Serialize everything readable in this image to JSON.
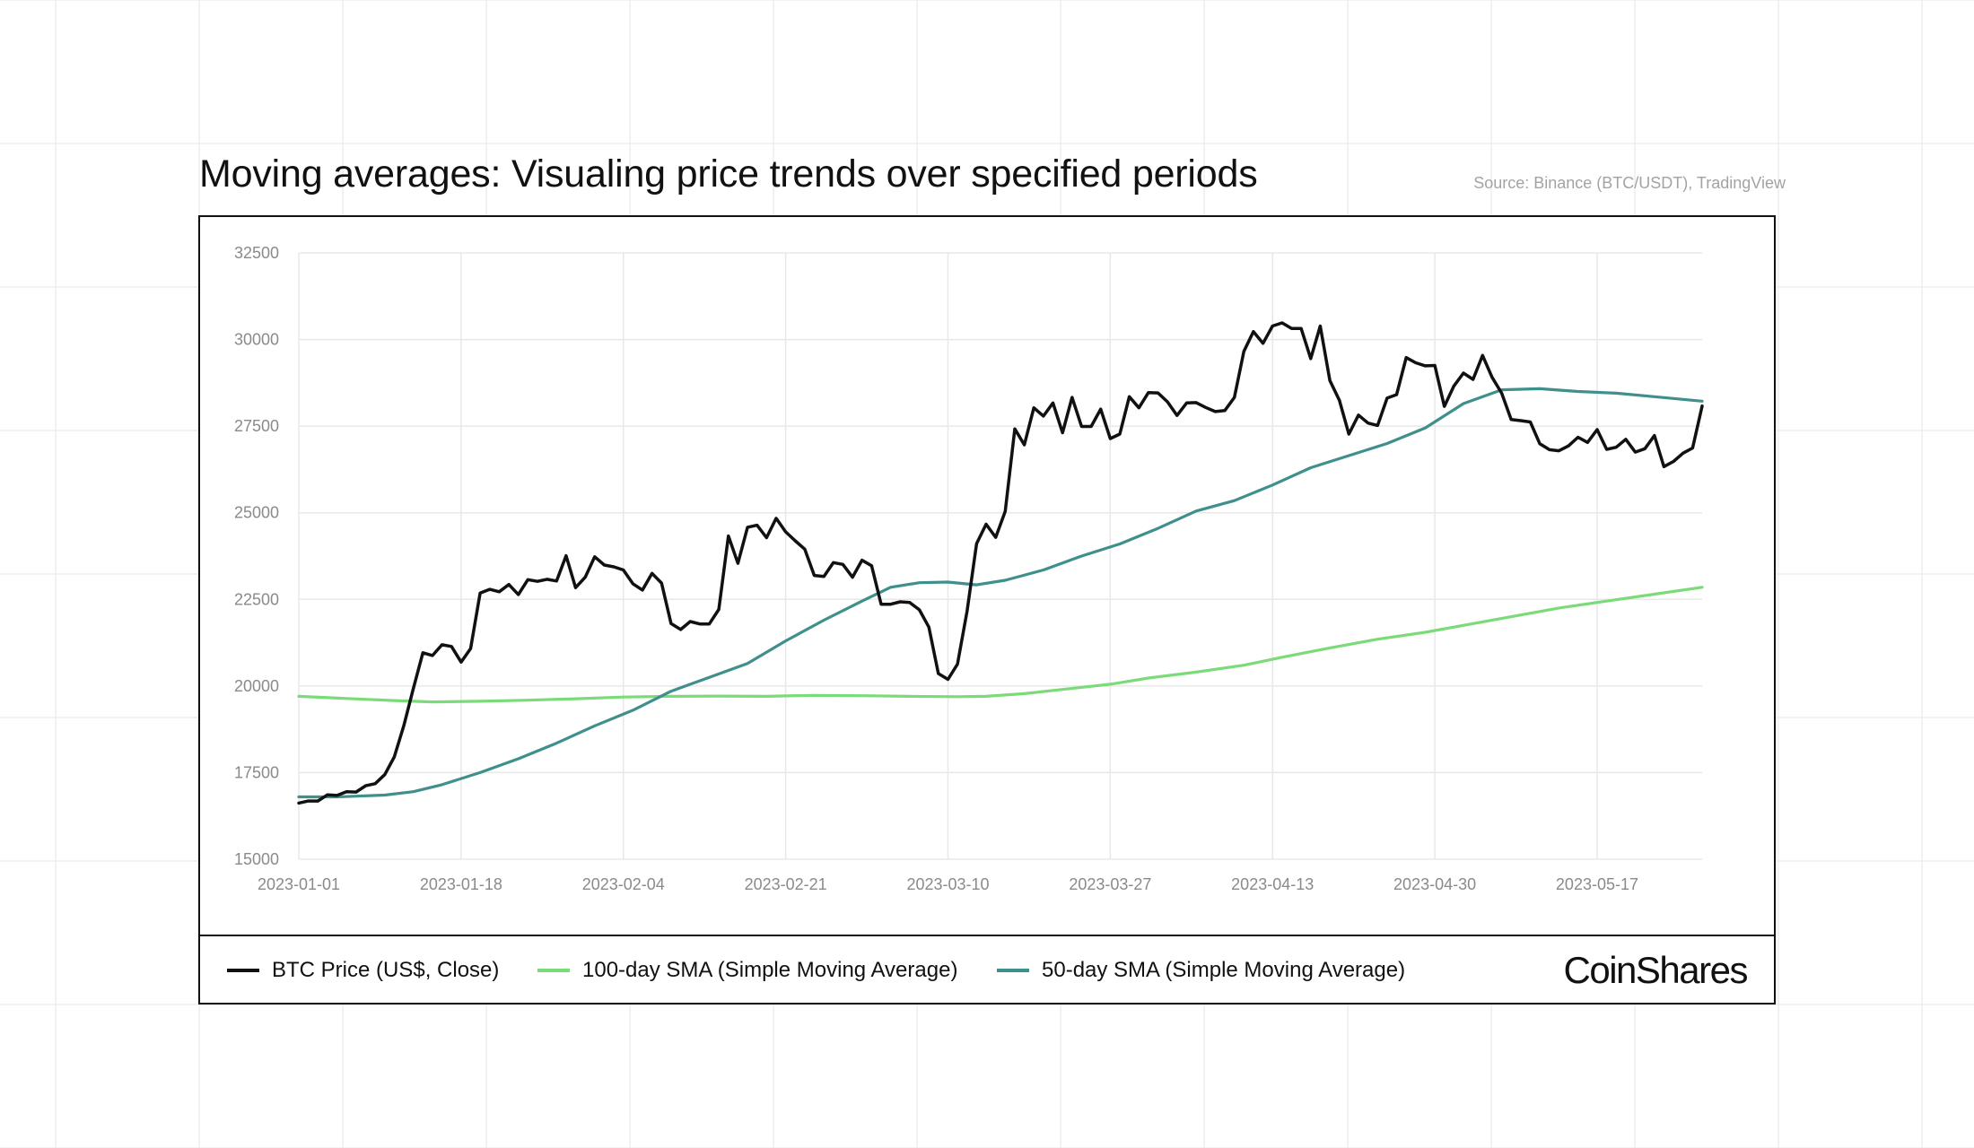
{
  "title": "Moving averages: Visualing price trends over specified periods",
  "source": "Source: Binance (BTC/USDT), TradingView",
  "brand": "CoinShares",
  "colors": {
    "btc": "#111111",
    "sma100": "#7adb78",
    "sma50": "#3f8f8c",
    "grid": "#e8e8e8",
    "tick_label": "#8a8a8a"
  },
  "chart_data": {
    "type": "line",
    "x_start": "2023-01-01",
    "x_end": "2023-05-28",
    "x_ticks": [
      "2023-01-01",
      "2023-01-18",
      "2023-02-04",
      "2023-02-21",
      "2023-03-10",
      "2023-03-27",
      "2023-04-13",
      "2023-04-30",
      "2023-05-17"
    ],
    "y_ticks": [
      15000,
      17500,
      20000,
      22500,
      25000,
      27500,
      30000,
      32500
    ],
    "ylim": [
      15000,
      32500
    ],
    "grid": true,
    "legend_position": "bottom",
    "series": [
      {
        "name": "BTC Price (US$, Close)",
        "color": "#111111",
        "points": [
          [
            "2023-01-01",
            16620
          ],
          [
            "2023-01-02",
            16680
          ],
          [
            "2023-01-03",
            16680
          ],
          [
            "2023-01-04",
            16860
          ],
          [
            "2023-01-05",
            16840
          ],
          [
            "2023-01-06",
            16950
          ],
          [
            "2023-01-07",
            16940
          ],
          [
            "2023-01-08",
            17120
          ],
          [
            "2023-01-09",
            17180
          ],
          [
            "2023-01-10",
            17440
          ],
          [
            "2023-01-11",
            17950
          ],
          [
            "2023-01-12",
            18850
          ],
          [
            "2023-01-13",
            19930
          ],
          [
            "2023-01-14",
            20960
          ],
          [
            "2023-01-15",
            20880
          ],
          [
            "2023-01-16",
            21190
          ],
          [
            "2023-01-17",
            21140
          ],
          [
            "2023-01-18",
            20690
          ],
          [
            "2023-01-19",
            21080
          ],
          [
            "2023-01-20",
            22680
          ],
          [
            "2023-01-21",
            22790
          ],
          [
            "2023-01-22",
            22720
          ],
          [
            "2023-01-23",
            22930
          ],
          [
            "2023-01-24",
            22640
          ],
          [
            "2023-01-25",
            23070
          ],
          [
            "2023-01-26",
            23020
          ],
          [
            "2023-01-27",
            23080
          ],
          [
            "2023-01-28",
            23030
          ],
          [
            "2023-01-29",
            23760
          ],
          [
            "2023-01-30",
            22840
          ],
          [
            "2023-01-31",
            23140
          ],
          [
            "2023-02-01",
            23730
          ],
          [
            "2023-02-02",
            23490
          ],
          [
            "2023-02-03",
            23440
          ],
          [
            "2023-02-04",
            23350
          ],
          [
            "2023-02-05",
            22950
          ],
          [
            "2023-02-06",
            22770
          ],
          [
            "2023-02-07",
            23250
          ],
          [
            "2023-02-08",
            22970
          ],
          [
            "2023-02-09",
            21800
          ],
          [
            "2023-02-10",
            21630
          ],
          [
            "2023-02-11",
            21860
          ],
          [
            "2023-02-12",
            21790
          ],
          [
            "2023-02-13",
            21790
          ],
          [
            "2023-02-14",
            22210
          ],
          [
            "2023-02-15",
            24330
          ],
          [
            "2023-02-16",
            23540
          ],
          [
            "2023-02-17",
            24580
          ],
          [
            "2023-02-18",
            24640
          ],
          [
            "2023-02-19",
            24280
          ],
          [
            "2023-02-20",
            24840
          ],
          [
            "2023-02-21",
            24450
          ],
          [
            "2023-02-22",
            24190
          ],
          [
            "2023-02-23",
            23950
          ],
          [
            "2023-02-24",
            23190
          ],
          [
            "2023-02-25",
            23160
          ],
          [
            "2023-02-26",
            23560
          ],
          [
            "2023-02-27",
            23510
          ],
          [
            "2023-02-28",
            23140
          ],
          [
            "2023-03-01",
            23630
          ],
          [
            "2023-03-02",
            23470
          ],
          [
            "2023-03-03",
            22360
          ],
          [
            "2023-03-04",
            22360
          ],
          [
            "2023-03-05",
            22430
          ],
          [
            "2023-03-06",
            22410
          ],
          [
            "2023-03-07",
            22200
          ],
          [
            "2023-03-08",
            21700
          ],
          [
            "2023-03-09",
            20360
          ],
          [
            "2023-03-10",
            20190
          ],
          [
            "2023-03-11",
            20630
          ],
          [
            "2023-03-12",
            22160
          ],
          [
            "2023-03-13",
            24110
          ],
          [
            "2023-03-14",
            24670
          ],
          [
            "2023-03-15",
            24290
          ],
          [
            "2023-03-16",
            25040
          ],
          [
            "2023-03-17",
            27420
          ],
          [
            "2023-03-18",
            26960
          ],
          [
            "2023-03-19",
            28030
          ],
          [
            "2023-03-20",
            27790
          ],
          [
            "2023-03-21",
            28170
          ],
          [
            "2023-03-22",
            27310
          ],
          [
            "2023-03-23",
            28330
          ],
          [
            "2023-03-24",
            27490
          ],
          [
            "2023-03-25",
            27490
          ],
          [
            "2023-03-26",
            27990
          ],
          [
            "2023-03-27",
            27140
          ],
          [
            "2023-03-28",
            27270
          ],
          [
            "2023-03-29",
            28350
          ],
          [
            "2023-03-30",
            28030
          ],
          [
            "2023-03-31",
            28470
          ],
          [
            "2023-04-01",
            28460
          ],
          [
            "2023-04-02",
            28200
          ],
          [
            "2023-04-03",
            27810
          ],
          [
            "2023-04-04",
            28170
          ],
          [
            "2023-04-05",
            28180
          ],
          [
            "2023-04-06",
            28040
          ],
          [
            "2023-04-07",
            27920
          ],
          [
            "2023-04-08",
            27950
          ],
          [
            "2023-04-09",
            28330
          ],
          [
            "2023-04-10",
            29660
          ],
          [
            "2023-04-11",
            30230
          ],
          [
            "2023-04-12",
            29890
          ],
          [
            "2023-04-13",
            30390
          ],
          [
            "2023-04-14",
            30480
          ],
          [
            "2023-04-15",
            30320
          ],
          [
            "2023-04-16",
            30320
          ],
          [
            "2023-04-17",
            29450
          ],
          [
            "2023-04-18",
            30390
          ],
          [
            "2023-04-19",
            28820
          ],
          [
            "2023-04-20",
            28250
          ],
          [
            "2023-04-21",
            27270
          ],
          [
            "2023-04-22",
            27820
          ],
          [
            "2023-04-23",
            27590
          ],
          [
            "2023-04-24",
            27520
          ],
          [
            "2023-04-25",
            28310
          ],
          [
            "2023-04-26",
            28410
          ],
          [
            "2023-04-27",
            29480
          ],
          [
            "2023-04-28",
            29330
          ],
          [
            "2023-04-29",
            29240
          ],
          [
            "2023-04-30",
            29250
          ],
          [
            "2023-05-01",
            28070
          ],
          [
            "2023-05-02",
            28660
          ],
          [
            "2023-05-03",
            29030
          ],
          [
            "2023-05-04",
            28850
          ],
          [
            "2023-05-05",
            29540
          ],
          [
            "2023-05-06",
            28910
          ],
          [
            "2023-05-07",
            28450
          ],
          [
            "2023-05-08",
            27690
          ],
          [
            "2023-05-09",
            27660
          ],
          [
            "2023-05-10",
            27620
          ],
          [
            "2023-05-11",
            26990
          ],
          [
            "2023-05-12",
            26820
          ],
          [
            "2023-05-13",
            26790
          ],
          [
            "2023-05-14",
            26930
          ],
          [
            "2023-05-15",
            27180
          ],
          [
            "2023-05-16",
            27030
          ],
          [
            "2023-05-17",
            27400
          ],
          [
            "2023-05-18",
            26830
          ],
          [
            "2023-05-19",
            26890
          ],
          [
            "2023-05-20",
            27120
          ],
          [
            "2023-05-21",
            26750
          ],
          [
            "2023-05-22",
            26850
          ],
          [
            "2023-05-23",
            27230
          ],
          [
            "2023-05-24",
            26330
          ],
          [
            "2023-05-25",
            26480
          ],
          [
            "2023-05-26",
            26720
          ],
          [
            "2023-05-27",
            26870
          ],
          [
            "2023-05-28",
            28080
          ]
        ]
      },
      {
        "name": "100-day SMA (Simple Moving Average)",
        "color": "#7adb78",
        "points": [
          [
            "2023-01-01",
            19700
          ],
          [
            "2023-01-06",
            19640
          ],
          [
            "2023-01-11",
            19580
          ],
          [
            "2023-01-15",
            19540
          ],
          [
            "2023-01-20",
            19560
          ],
          [
            "2023-01-25",
            19590
          ],
          [
            "2023-01-30",
            19630
          ],
          [
            "2023-02-04",
            19680
          ],
          [
            "2023-02-09",
            19700
          ],
          [
            "2023-02-14",
            19710
          ],
          [
            "2023-02-19",
            19700
          ],
          [
            "2023-02-24",
            19730
          ],
          [
            "2023-03-01",
            19720
          ],
          [
            "2023-03-06",
            19700
          ],
          [
            "2023-03-11",
            19690
          ],
          [
            "2023-03-14",
            19700
          ],
          [
            "2023-03-18",
            19780
          ],
          [
            "2023-03-22",
            19900
          ],
          [
            "2023-03-27",
            20050
          ],
          [
            "2023-03-31",
            20230
          ],
          [
            "2023-04-05",
            20400
          ],
          [
            "2023-04-10",
            20600
          ],
          [
            "2023-04-14",
            20830
          ],
          [
            "2023-04-19",
            21100
          ],
          [
            "2023-04-24",
            21350
          ],
          [
            "2023-04-29",
            21550
          ],
          [
            "2023-05-04",
            21800
          ],
          [
            "2023-05-09",
            22050
          ],
          [
            "2023-05-13",
            22250
          ],
          [
            "2023-05-18",
            22450
          ],
          [
            "2023-05-23",
            22650
          ],
          [
            "2023-05-28",
            22850
          ]
        ]
      },
      {
        "name": "50-day SMA (Simple Moving Average)",
        "color": "#3f8f8c",
        "points": [
          [
            "2023-01-01",
            16800
          ],
          [
            "2023-01-05",
            16800
          ],
          [
            "2023-01-10",
            16850
          ],
          [
            "2023-01-13",
            16950
          ],
          [
            "2023-01-16",
            17150
          ],
          [
            "2023-01-20",
            17500
          ],
          [
            "2023-01-24",
            17900
          ],
          [
            "2023-01-28",
            18350
          ],
          [
            "2023-02-01",
            18850
          ],
          [
            "2023-02-05",
            19300
          ],
          [
            "2023-02-09",
            19850
          ],
          [
            "2023-02-13",
            20250
          ],
          [
            "2023-02-17",
            20650
          ],
          [
            "2023-02-21",
            21300
          ],
          [
            "2023-02-25",
            21900
          ],
          [
            "2023-03-01",
            22450
          ],
          [
            "2023-03-04",
            22850
          ],
          [
            "2023-03-07",
            22980
          ],
          [
            "2023-03-10",
            23000
          ],
          [
            "2023-03-13",
            22920
          ],
          [
            "2023-03-16",
            23050
          ],
          [
            "2023-03-20",
            23350
          ],
          [
            "2023-03-24",
            23750
          ],
          [
            "2023-03-28",
            24100
          ],
          [
            "2023-04-01",
            24550
          ],
          [
            "2023-04-05",
            25050
          ],
          [
            "2023-04-09",
            25350
          ],
          [
            "2023-04-13",
            25800
          ],
          [
            "2023-04-17",
            26300
          ],
          [
            "2023-04-21",
            26650
          ],
          [
            "2023-04-25",
            27000
          ],
          [
            "2023-04-29",
            27450
          ],
          [
            "2023-05-03",
            28150
          ],
          [
            "2023-05-07",
            28550
          ],
          [
            "2023-05-11",
            28580
          ],
          [
            "2023-05-15",
            28500
          ],
          [
            "2023-05-19",
            28450
          ],
          [
            "2023-05-23",
            28350
          ],
          [
            "2023-05-28",
            28220
          ]
        ]
      }
    ]
  }
}
